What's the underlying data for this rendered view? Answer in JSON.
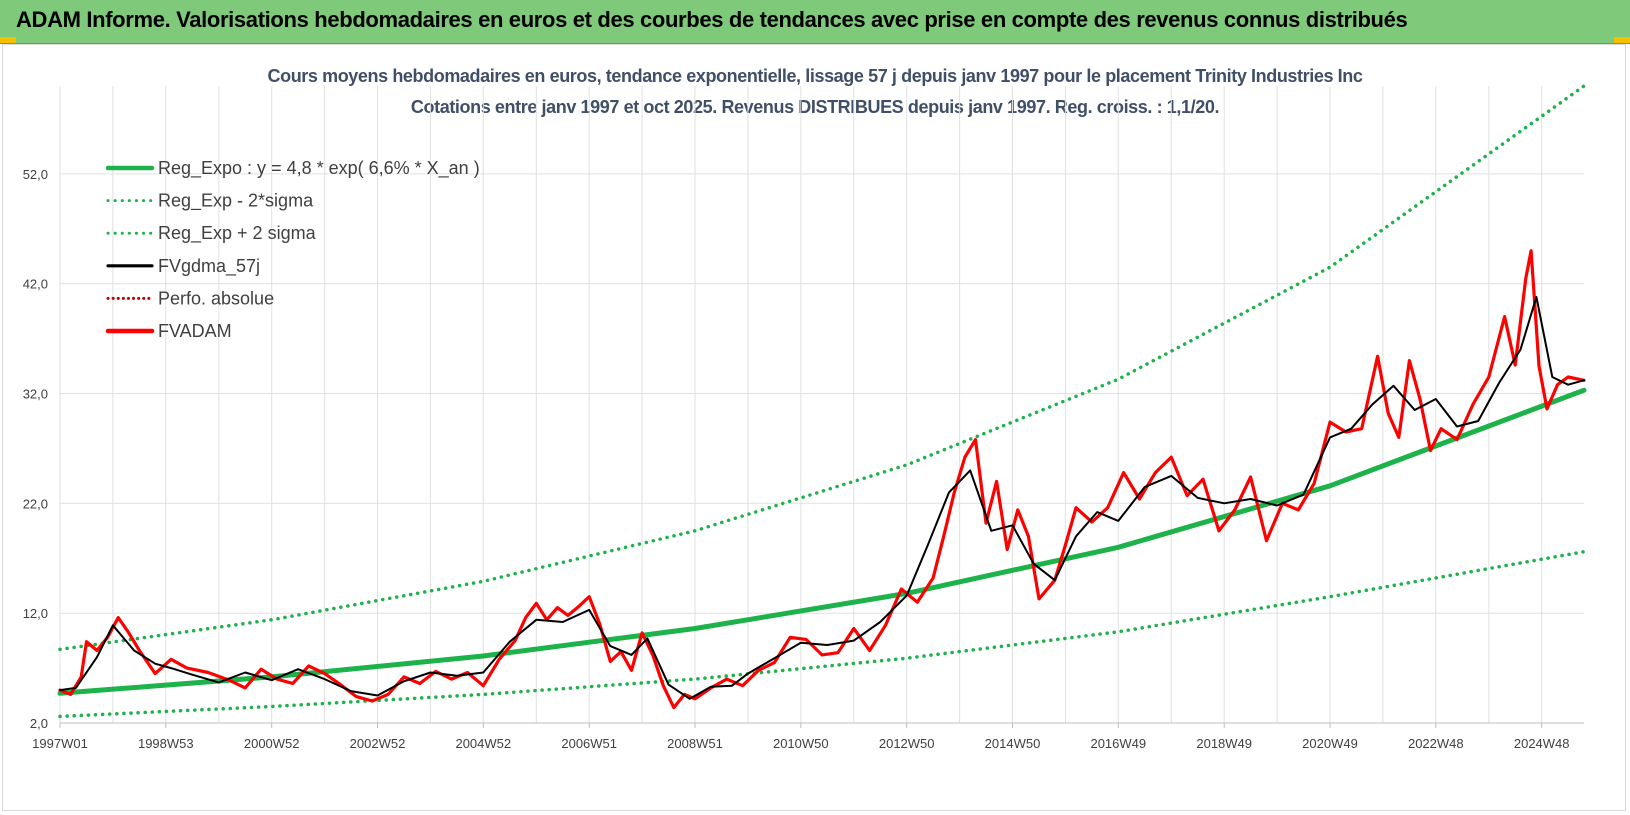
{
  "banner": {
    "title": "ADAM Informe. Valorisations hebdomadaires en euros et des courbes de tendances avec prise en compte des revenus connus distribués"
  },
  "colors": {
    "banner": "#7ec97a",
    "reg": "#1db24a",
    "fvgdma": "#000000",
    "fvadam": "#ff0000",
    "perfo": "#c00000",
    "grid": "#e0e0e0"
  },
  "chart_data": {
    "type": "line",
    "title": "Cours moyens hebdomadaires en euros, tendance exponentielle, lissage 57 j depuis janv 1997 pour le placement Trinity Industries Inc",
    "subtitle": "Cotations entre janv 1997 et oct 2025. Revenus DISTRIBUES depuis janv 1997. Reg. croiss. : 1,1/20.",
    "xlabel": "",
    "ylabel": "",
    "ylim": [
      2,
      60
    ],
    "xlim": [
      1997.0,
      2025.8
    ],
    "grid": true,
    "legend_position": "top-left",
    "yticks": [
      "2,0",
      "12,0",
      "22,0",
      "32,0",
      "42,0",
      "52,0"
    ],
    "ytick_values": [
      2,
      12,
      22,
      32,
      42,
      52
    ],
    "xticks": [
      "1997W01",
      "1998W53",
      "2000W52",
      "2002W52",
      "2004W52",
      "2006W51",
      "2008W51",
      "2010W50",
      "2012W50",
      "2014W50",
      "2016W49",
      "2018W49",
      "2020W49",
      "2022W48",
      "2024W48"
    ],
    "xtick_values": [
      1997.0,
      1999.0,
      2001.0,
      2003.0,
      2005.0,
      2007.0,
      2009.0,
      2011.0,
      2013.0,
      2015.0,
      2017.0,
      2019.0,
      2021.0,
      2023.0,
      2025.0
    ],
    "series": [
      {
        "name": "Reg_Expo : y = 4,8 * exp( 6,6% *  X_an )",
        "style": "solid-thick",
        "color": "#1db24a",
        "x": [
          1997.0,
          2001.0,
          2005.0,
          2009.0,
          2013.0,
          2017.0,
          2021.0,
          2025.8
        ],
        "y": [
          4.7,
          6.2,
          8.1,
          10.6,
          13.8,
          18.0,
          23.6,
          32.3
        ]
      },
      {
        "name": "Reg_Exp - 2*sigma",
        "style": "dotted",
        "color": "#1db24a",
        "x": [
          1997.0,
          2001.0,
          2005.0,
          2009.0,
          2013.0,
          2017.0,
          2021.0,
          2025.8
        ],
        "y": [
          2.6,
          3.5,
          4.6,
          6.0,
          7.9,
          10.3,
          13.5,
          17.6
        ]
      },
      {
        "name": "Reg_Exp + 2 sigma",
        "style": "dotted",
        "color": "#1db24a",
        "x": [
          1997.0,
          2001.0,
          2005.0,
          2009.0,
          2013.0,
          2017.0,
          2021.0,
          2025.8
        ],
        "y": [
          8.7,
          11.4,
          14.9,
          19.5,
          25.5,
          33.3,
          43.5,
          60.0
        ]
      },
      {
        "name": "FVgdma_57j",
        "style": "solid",
        "color": "#000000",
        "x": [
          1997.0,
          1997.3,
          1997.7,
          1998.0,
          1998.4,
          1998.8,
          1999.1,
          1999.5,
          2000.0,
          2000.5,
          2001.0,
          2001.5,
          2002.0,
          2002.5,
          2003.0,
          2003.5,
          2004.0,
          2004.5,
          2005.0,
          2005.5,
          2006.0,
          2006.5,
          2007.0,
          2007.4,
          2007.8,
          2008.1,
          2008.5,
          2008.9,
          2009.3,
          2009.7,
          2010.0,
          2010.5,
          2011.0,
          2011.5,
          2012.0,
          2012.5,
          2013.0,
          2013.4,
          2013.8,
          2014.2,
          2014.6,
          2015.0,
          2015.4,
          2015.8,
          2016.2,
          2016.6,
          2017.0,
          2017.5,
          2018.0,
          2018.5,
          2019.0,
          2019.5,
          2020.0,
          2020.5,
          2021.0,
          2021.4,
          2021.8,
          2022.2,
          2022.6,
          2023.0,
          2023.4,
          2023.8,
          2024.2,
          2024.6,
          2024.9,
          2025.2,
          2025.5,
          2025.8
        ],
        "y": [
          5.0,
          5.2,
          8.0,
          10.9,
          8.6,
          7.4,
          7.0,
          6.4,
          5.7,
          6.6,
          5.9,
          6.9,
          6.0,
          4.9,
          4.5,
          5.8,
          6.6,
          6.3,
          6.6,
          9.4,
          11.4,
          11.2,
          12.3,
          9.0,
          8.2,
          9.7,
          5.5,
          4.2,
          5.3,
          5.4,
          6.5,
          7.9,
          9.3,
          9.1,
          9.5,
          11.2,
          13.6,
          18.2,
          23.0,
          25.0,
          19.5,
          20.0,
          16.5,
          15.0,
          19.0,
          21.2,
          20.4,
          23.5,
          24.5,
          22.5,
          22.0,
          22.4,
          21.8,
          22.8,
          28.0,
          28.8,
          31.0,
          32.7,
          30.5,
          31.5,
          29.0,
          29.5,
          33.0,
          36.0,
          40.8,
          33.5,
          32.8,
          33.2
        ]
      },
      {
        "name": "Perfo. absolue",
        "style": "dotted",
        "color": "#c00000",
        "x": [],
        "y": []
      },
      {
        "name": "FVADAM",
        "style": "solid-thick",
        "color": "#ff0000",
        "x": [
          1997.0,
          1997.2,
          1997.4,
          1997.5,
          1997.7,
          1997.9,
          1998.1,
          1998.3,
          1998.5,
          1998.8,
          1999.1,
          1999.4,
          1999.8,
          2000.2,
          2000.5,
          2000.8,
          2001.1,
          2001.4,
          2001.7,
          2002.0,
          2002.3,
          2002.6,
          2002.9,
          2003.2,
          2003.5,
          2003.8,
          2004.1,
          2004.4,
          2004.7,
          2005.0,
          2005.3,
          2005.6,
          2005.8,
          2006.0,
          2006.2,
          2006.4,
          2006.6,
          2006.8,
          2007.0,
          2007.2,
          2007.4,
          2007.6,
          2007.8,
          2008.0,
          2008.2,
          2008.4,
          2008.6,
          2008.8,
          2009.0,
          2009.3,
          2009.6,
          2009.9,
          2010.2,
          2010.5,
          2010.8,
          2011.1,
          2011.4,
          2011.7,
          2012.0,
          2012.3,
          2012.6,
          2012.9,
          2013.2,
          2013.5,
          2013.7,
          2013.9,
          2014.1,
          2014.3,
          2014.5,
          2014.7,
          2014.9,
          2015.1,
          2015.3,
          2015.5,
          2015.8,
          2016.0,
          2016.2,
          2016.5,
          2016.8,
          2017.1,
          2017.4,
          2017.7,
          2018.0,
          2018.3,
          2018.6,
          2018.9,
          2019.2,
          2019.5,
          2019.8,
          2020.1,
          2020.4,
          2020.7,
          2021.0,
          2021.3,
          2021.6,
          2021.9,
          2022.1,
          2022.3,
          2022.5,
          2022.7,
          2022.9,
          2023.1,
          2023.4,
          2023.7,
          2024.0,
          2024.3,
          2024.5,
          2024.7,
          2024.8,
          2024.95,
          2025.1,
          2025.3,
          2025.5,
          2025.8
        ],
        "y": [
          5.0,
          4.6,
          6.2,
          9.4,
          8.6,
          9.8,
          11.6,
          10.2,
          8.6,
          6.5,
          7.8,
          7.0,
          6.6,
          5.9,
          5.2,
          6.9,
          6.0,
          5.6,
          7.2,
          6.5,
          5.5,
          4.4,
          4.0,
          4.6,
          6.2,
          5.6,
          6.7,
          6.0,
          6.6,
          5.4,
          7.8,
          9.5,
          11.6,
          12.9,
          11.4,
          12.5,
          11.8,
          12.6,
          13.5,
          11.0,
          7.6,
          8.5,
          6.8,
          10.2,
          8.2,
          5.4,
          3.4,
          4.6,
          4.2,
          5.2,
          6.0,
          5.4,
          6.8,
          7.5,
          9.8,
          9.6,
          8.2,
          8.4,
          10.6,
          8.6,
          10.9,
          14.2,
          13.0,
          15.2,
          19.0,
          23.0,
          26.2,
          27.8,
          20.2,
          24.0,
          17.8,
          21.4,
          19.0,
          13.3,
          15.0,
          18.2,
          21.6,
          20.3,
          21.6,
          24.8,
          22.4,
          24.8,
          26.2,
          22.7,
          24.2,
          19.5,
          21.4,
          24.4,
          18.6,
          22.0,
          21.4,
          23.8,
          29.4,
          28.5,
          28.8,
          35.4,
          30.2,
          28.0,
          35.0,
          31.5,
          26.8,
          28.8,
          27.8,
          31.0,
          33.5,
          39.0,
          34.6,
          42.5,
          45.0,
          34.5,
          30.6,
          32.8,
          33.5,
          33.2
        ]
      }
    ]
  }
}
